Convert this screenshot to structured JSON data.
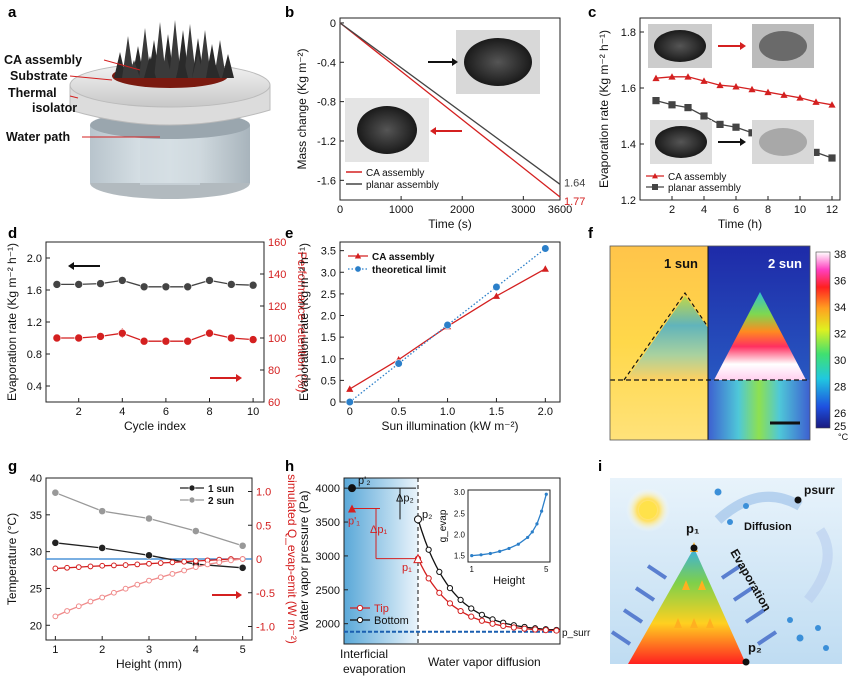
{
  "panels": {
    "a": {
      "letter": "a",
      "labels": [
        "CA assembly",
        "Substrate",
        "Thermal",
        "isolator",
        "Water path"
      ]
    },
    "b": {
      "letter": "b"
    },
    "c": {
      "letter": "c"
    },
    "d": {
      "letter": "d"
    },
    "e": {
      "letter": "e"
    },
    "f": {
      "letter": "f",
      "left_label": "1 sun",
      "right_label": "2 sun",
      "colorbar_ticks": [
        "38",
        "36",
        "34",
        "32",
        "30",
        "28",
        "26",
        "25"
      ],
      "unit": "°C"
    },
    "g": {
      "letter": "g"
    },
    "h": {
      "letter": "h",
      "region_left": [
        "Interficial",
        "evaporation"
      ],
      "region_right": "Water vapor diffusion",
      "labels": {
        "p2a": "p'₂",
        "p1a": "p'₁",
        "dp2": "Δp₂",
        "dp1": "Δp₁",
        "p2": "p₂",
        "p1": "p₁",
        "psurr": "p_surr"
      }
    },
    "i": {
      "letter": "i",
      "labels": {
        "psurr": "psurr",
        "p1": "p₁",
        "p2": "p₂",
        "diffusion": "Diffusion",
        "evaporation": "Evaporation"
      }
    }
  },
  "chart_data": [
    {
      "id": "b",
      "type": "line",
      "xlabel": "Time (s)",
      "ylabel": "Mass change (Kg m⁻²)",
      "xlim": [
        0,
        3600
      ],
      "ylim": [
        -1.8,
        0.05
      ],
      "xticks": [
        0,
        1000,
        2000,
        3000,
        3600
      ],
      "yticks": [
        0,
        -0.4,
        -0.8,
        -1.2,
        -1.6
      ],
      "series": [
        {
          "name": "CA assembly",
          "color": "#d42020",
          "x": [
            0,
            3600
          ],
          "y": [
            0,
            -1.77
          ],
          "end_label": "1.77"
        },
        {
          "name": "planar assembly",
          "color": "#444444",
          "x": [
            0,
            3600
          ],
          "y": [
            0,
            -1.64
          ],
          "end_label": "1.64"
        }
      ],
      "legend": "bottom-left"
    },
    {
      "id": "c",
      "type": "line",
      "xlabel": "Time (h)",
      "ylabel": "Evaporation rate (Kg m⁻² h⁻¹)",
      "xlim": [
        0,
        12.5
      ],
      "ylim": [
        1.2,
        1.85
      ],
      "xticks": [
        2,
        4,
        6,
        8,
        10,
        12
      ],
      "yticks": [
        1.2,
        1.4,
        1.6,
        1.8
      ],
      "series": [
        {
          "name": "CA assembly",
          "color": "#d42020",
          "marker": "triangle",
          "x": [
            1,
            2,
            3,
            4,
            5,
            6,
            7,
            8,
            9,
            10,
            11,
            12
          ],
          "y": [
            1.635,
            1.64,
            1.64,
            1.625,
            1.61,
            1.605,
            1.595,
            1.585,
            1.575,
            1.565,
            1.55,
            1.54
          ]
        },
        {
          "name": "planar assembly",
          "color": "#444444",
          "marker": "square",
          "x": [
            1,
            2,
            3,
            4,
            5,
            6,
            7,
            8,
            9,
            10,
            11,
            12
          ],
          "y": [
            1.555,
            1.54,
            1.53,
            1.5,
            1.47,
            1.46,
            1.44,
            1.43,
            1.42,
            1.42,
            1.37,
            1.35
          ]
        }
      ],
      "legend": "bottom-left"
    },
    {
      "id": "d",
      "type": "line",
      "xlabel": "Cycle index",
      "ylabel": "Evaporation rate (Kg m⁻² h⁻¹)",
      "y2label": "Performance retention (%)",
      "xlim": [
        0.5,
        10.5
      ],
      "ylim": [
        0.2,
        2.2
      ],
      "y2lim": [
        60,
        160
      ],
      "xticks": [
        2,
        4,
        6,
        8,
        10
      ],
      "yticks": [
        0.4,
        0.8,
        1.2,
        1.6,
        2.0
      ],
      "y2ticks": [
        60,
        80,
        100,
        120,
        140,
        160
      ],
      "series": [
        {
          "name": "evaporation",
          "color": "#444444",
          "axis": "left",
          "x": [
            1,
            2,
            3,
            4,
            5,
            6,
            7,
            8,
            9,
            10
          ],
          "y": [
            1.67,
            1.67,
            1.68,
            1.72,
            1.64,
            1.64,
            1.64,
            1.72,
            1.67,
            1.66
          ],
          "err": [
            0.03,
            0.03,
            0.03,
            0.05,
            0.03,
            0.03,
            0.03,
            0.03,
            0.03,
            0.03
          ]
        },
        {
          "name": "retention",
          "color": "#d42020",
          "axis": "right",
          "x": [
            1,
            2,
            3,
            4,
            5,
            6,
            7,
            8,
            9,
            10
          ],
          "y": [
            100,
            100,
            101,
            103,
            98,
            98,
            98,
            103,
            100,
            99
          ],
          "err": [
            2,
            2,
            2,
            3,
            2,
            2,
            2,
            2,
            2,
            2
          ]
        }
      ]
    },
    {
      "id": "e",
      "type": "line",
      "xlabel": "Sun illumination (kW m⁻²)",
      "ylabel": "Evaporation rate (Kg m⁻² h⁻¹)",
      "xlim": [
        -0.1,
        2.15
      ],
      "ylim": [
        0,
        3.7
      ],
      "xticks": [
        0.0,
        0.5,
        1.0,
        1.5,
        2.0
      ],
      "yticks": [
        0.0,
        0.5,
        1.0,
        1.5,
        2.0,
        2.5,
        3.0,
        3.5
      ],
      "series": [
        {
          "name": "CA assembly",
          "color": "#d42020",
          "marker": "triangle",
          "x": [
            0,
            0.5,
            1.0,
            1.5,
            2.0
          ],
          "y": [
            0.3,
            0.98,
            1.75,
            2.45,
            3.08
          ]
        },
        {
          "name": "theoretical limit",
          "color": "#2b7fc9",
          "marker": "circle",
          "dotted": true,
          "x": [
            0,
            0.5,
            1.0,
            1.5,
            2.0
          ],
          "y": [
            0.0,
            0.89,
            1.78,
            2.66,
            3.55
          ]
        }
      ],
      "legend": "top-left"
    },
    {
      "id": "g",
      "type": "line",
      "xlabel": "Height (mm)",
      "ylabel": "Temperature (°C)",
      "y2label": "simulated Q_evap-emit (W m⁻²)",
      "xlim": [
        0.8,
        5.2
      ],
      "ylim": [
        18,
        40
      ],
      "y2lim": [
        -1.2,
        1.2
      ],
      "xticks": [
        1,
        2,
        3,
        4,
        5
      ],
      "yticks": [
        20,
        25,
        30,
        35,
        40
      ],
      "y2ticks": [
        -1.0,
        -0.5,
        0.0,
        0.5,
        1.0
      ],
      "series": [
        {
          "name": "1 sun",
          "color": "#222222",
          "axis": "left",
          "x": [
            1,
            2,
            3,
            4,
            5
          ],
          "y": [
            31.2,
            30.5,
            29.5,
            28.3,
            27.8
          ]
        },
        {
          "name": "2 sun",
          "color": "#999999",
          "axis": "left",
          "x": [
            1,
            2,
            3,
            4,
            5
          ],
          "y": [
            38.0,
            35.5,
            34.5,
            32.8,
            30.8
          ]
        },
        {
          "name": "1 sun sim",
          "color": "#d42020",
          "axis": "right",
          "x": [
            1,
            1.25,
            1.5,
            1.75,
            2,
            2.25,
            2.5,
            2.75,
            3,
            3.25,
            3.5,
            3.75,
            4,
            4.25,
            4.5,
            4.75,
            5
          ],
          "y": [
            -0.14,
            -0.13,
            -0.12,
            -0.11,
            -0.1,
            -0.095,
            -0.09,
            -0.08,
            -0.07,
            -0.06,
            -0.05,
            -0.04,
            -0.03,
            -0.02,
            -0.01,
            0.0,
            0.0
          ]
        },
        {
          "name": "2 sun sim",
          "color": "#f08a8a",
          "axis": "right",
          "x": [
            1,
            1.25,
            1.5,
            1.75,
            2,
            2.25,
            2.5,
            2.75,
            3,
            3.25,
            3.5,
            3.75,
            4,
            4.25,
            4.5,
            4.75,
            5
          ],
          "y": [
            -0.85,
            -0.77,
            -0.7,
            -0.63,
            -0.57,
            -0.5,
            -0.44,
            -0.38,
            -0.32,
            -0.27,
            -0.22,
            -0.17,
            -0.12,
            -0.08,
            -0.05,
            -0.02,
            0.0
          ]
        }
      ],
      "hline_y2": 0,
      "legend": "top-right"
    },
    {
      "id": "h",
      "type": "line",
      "ylabel": "Water vapor pressure (Pa)",
      "ylim": [
        1700,
        4150
      ],
      "yticks": [
        2000,
        2500,
        3000,
        3500,
        4000
      ],
      "series": [
        {
          "name": "Tip",
          "color": "#d42020"
        },
        {
          "name": "Bottom",
          "color": "#111111"
        }
      ],
      "psurr": 1880,
      "inset": {
        "xlabel": "Height",
        "ylabel": "g_evap",
        "xticks": [
          1,
          5
        ],
        "yticks": [
          1.5,
          2.0,
          2.5,
          3.0
        ],
        "xlim": [
          0.8,
          5.2
        ],
        "ylim": [
          1.35,
          3.05
        ],
        "x": [
          1,
          1.5,
          2,
          2.5,
          3,
          3.5,
          4,
          4.25,
          4.5,
          4.75,
          5
        ],
        "y": [
          1.5,
          1.52,
          1.55,
          1.6,
          1.67,
          1.77,
          1.93,
          2.06,
          2.25,
          2.55,
          2.95
        ]
      },
      "legend": "bottom-left"
    }
  ]
}
